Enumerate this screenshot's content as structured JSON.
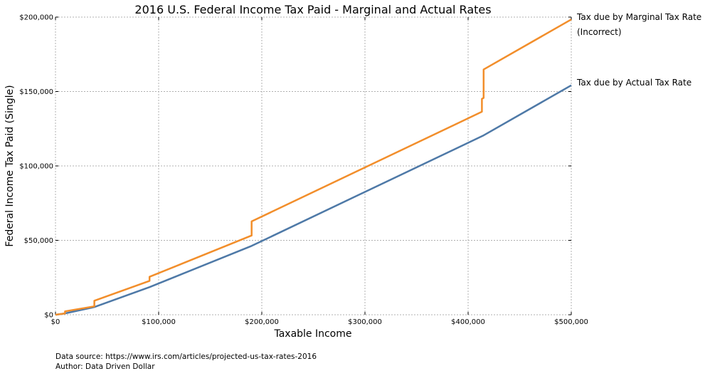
{
  "chart_data": {
    "type": "line",
    "title": "2016 U.S. Federal Income Tax Paid - Marginal and Actual Rates",
    "xlabel": "Taxable Income",
    "ylabel": "Federal Income Tax Paid (Single)",
    "xlim": [
      0,
      500000
    ],
    "ylim": [
      0,
      200000
    ],
    "x_ticks": [
      0,
      100000,
      200000,
      300000,
      400000,
      500000
    ],
    "x_tick_labels": [
      "$0",
      "$100,000",
      "$200,000",
      "$300,000",
      "$400,000",
      "$500,000"
    ],
    "y_ticks": [
      0,
      50000,
      100000,
      150000,
      200000
    ],
    "y_tick_labels": [
      "$0",
      "$50,000",
      "$100,000",
      "$150,000",
      "$200,000"
    ],
    "grid": true,
    "series": [
      {
        "name": "Tax due by Marginal Tax Rate",
        "name_line2": "(Incorrect)",
        "color": "#f28e2b",
        "x": [
          0,
          9275,
          9275,
          37650,
          37650,
          91150,
          91150,
          190150,
          190150,
          413350,
          413350,
          415050,
          415050,
          500000
        ],
        "y": [
          0,
          928,
          2318,
          5648,
          9413,
          22788,
          25522,
          53242,
          62750,
          136406,
          145100,
          145695,
          164780,
          198420
        ]
      },
      {
        "name": "Tax due by Actual Tax Rate",
        "color": "#4e79a7",
        "x": [
          0,
          9275,
          37650,
          91150,
          190150,
          413350,
          415050,
          500000
        ],
        "y": [
          0,
          928,
          5184,
          18559,
          46279,
          119935,
          120530,
          154170
        ]
      }
    ]
  },
  "footer": {
    "source": "Data source: https://www.irs.com/articles/projected-us-tax-rates-2016",
    "author": "Author: Data Driven Dollar"
  }
}
